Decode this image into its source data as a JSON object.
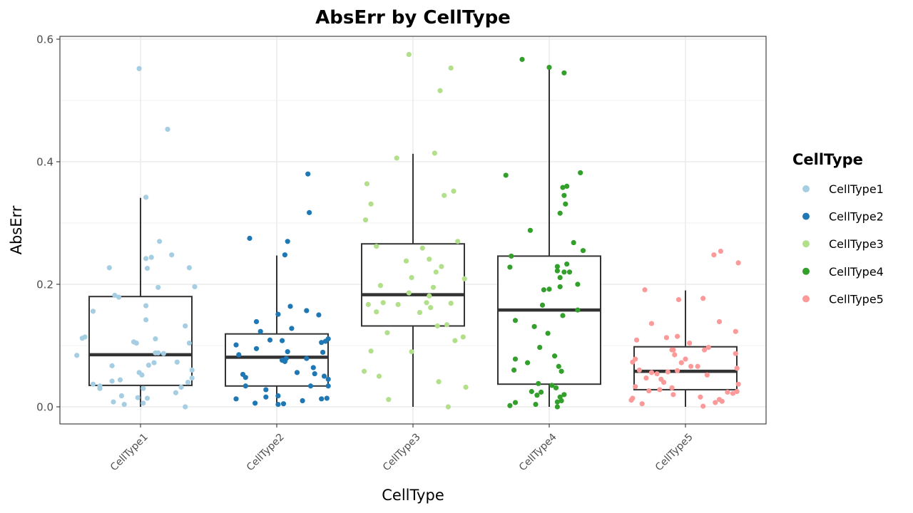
{
  "chart_data": {
    "type": "box+jitter",
    "title": "AbsErr by CellType",
    "xlabel": "CellType",
    "ylabel": "AbsErr",
    "ylim": [
      -0.03,
      0.62
    ],
    "yticks": [
      0.0,
      0.2,
      0.4,
      0.6
    ],
    "ytick_labels": [
      "0.0",
      "0.2",
      "0.4",
      "0.6"
    ],
    "grid": true,
    "legend": {
      "title": "CellType",
      "position": "right"
    },
    "categories": [
      "CellType1",
      "CellType2",
      "CellType3",
      "CellType4",
      "CellType5"
    ],
    "colors": [
      "#a6cee3",
      "#1f78b4",
      "#b2df8a",
      "#33a02c",
      "#fb9a99"
    ],
    "boxes": [
      {
        "category": "CellType1",
        "whisker_low": 0.0,
        "q1": 0.035,
        "median": 0.085,
        "q3": 0.18,
        "whisker_high": 0.341
      },
      {
        "category": "CellType2",
        "whisker_low": 0.003,
        "q1": 0.034,
        "median": 0.081,
        "q3": 0.119,
        "whisker_high": 0.247
      },
      {
        "category": "CellType3",
        "whisker_low": 0.0,
        "q1": 0.132,
        "median": 0.183,
        "q3": 0.266,
        "whisker_high": 0.413
      },
      {
        "category": "CellType4",
        "whisker_low": 0.0,
        "q1": 0.037,
        "median": 0.158,
        "q3": 0.246,
        "whisker_high": 0.556
      },
      {
        "category": "CellType5",
        "whisker_low": 0.0,
        "q1": 0.028,
        "median": 0.058,
        "q3": 0.098,
        "whisker_high": 0.19
      }
    ],
    "points": [
      {
        "category": "CellType1",
        "values": [
          0.552,
          0.453,
          0.342,
          0.27,
          0.248,
          0.244,
          0.242,
          0.227,
          0.227,
          0.226,
          0.196,
          0.195,
          0.182,
          0.179,
          0.165,
          0.156,
          0.142,
          0.132,
          0.114,
          0.112,
          0.111,
          0.106,
          0.104,
          0.104,
          0.088,
          0.088,
          0.087,
          0.084,
          0.073,
          0.072,
          0.068,
          0.067,
          0.06,
          0.056,
          0.052,
          0.047,
          0.044,
          0.042,
          0.04,
          0.037,
          0.034,
          0.032,
          0.03,
          0.03,
          0.023,
          0.018,
          0.015,
          0.014,
          0.008,
          0.006,
          0.004,
          0.0
        ],
        "jitter": [
          -0.01,
          0.2,
          0.04,
          0.14,
          0.23,
          0.08,
          0.04,
          -0.23,
          0.36,
          0.05,
          0.4,
          0.13,
          -0.19,
          -0.16,
          0.04,
          -0.35,
          0.04,
          0.33,
          -0.41,
          -0.43,
          0.11,
          -0.05,
          -0.03,
          0.36,
          0.11,
          0.13,
          0.17,
          -0.47,
          0.27,
          0.1,
          0.06,
          -0.21,
          0.38,
          -0.01,
          0.01,
          0.38,
          -0.15,
          -0.21,
          0.35,
          -0.35,
          -0.3,
          0.3,
          -0.3,
          0.02,
          0.26,
          -0.14,
          -0.02,
          0.05,
          -0.2,
          0.02,
          -0.12,
          0.33
        ]
      },
      {
        "category": "CellType2",
        "values": [
          0.38,
          0.317,
          0.275,
          0.27,
          0.248,
          0.164,
          0.157,
          0.151,
          0.15,
          0.139,
          0.128,
          0.123,
          0.111,
          0.109,
          0.108,
          0.107,
          0.105,
          0.101,
          0.095,
          0.09,
          0.089,
          0.085,
          0.079,
          0.079,
          0.076,
          0.074,
          0.064,
          0.056,
          0.054,
          0.053,
          0.05,
          0.048,
          0.045,
          0.034,
          0.034,
          0.034,
          0.028,
          0.018,
          0.016,
          0.014,
          0.013,
          0.013,
          0.01,
          0.006,
          0.005,
          0.004
        ],
        "jitter": [
          0.23,
          0.24,
          -0.2,
          0.08,
          0.06,
          0.1,
          0.22,
          0.01,
          0.31,
          -0.15,
          0.11,
          -0.12,
          0.38,
          -0.05,
          0.04,
          0.36,
          0.33,
          -0.3,
          -0.15,
          0.08,
          0.34,
          -0.28,
          0.22,
          0.07,
          0.04,
          0.06,
          0.27,
          0.15,
          0.28,
          -0.25,
          0.35,
          -0.23,
          0.38,
          0.25,
          -0.23,
          0.38,
          -0.08,
          0.01,
          -0.08,
          0.37,
          0.33,
          -0.3,
          0.19,
          -0.16,
          0.05,
          0.01
        ]
      },
      {
        "category": "CellType3",
        "values": [
          0.575,
          0.553,
          0.516,
          0.414,
          0.406,
          0.364,
          0.352,
          0.345,
          0.331,
          0.305,
          0.27,
          0.262,
          0.259,
          0.241,
          0.238,
          0.229,
          0.22,
          0.211,
          0.209,
          0.198,
          0.195,
          0.186,
          0.181,
          0.17,
          0.17,
          0.169,
          0.167,
          0.167,
          0.162,
          0.155,
          0.154,
          0.134,
          0.132,
          0.121,
          0.114,
          0.108,
          0.091,
          0.09,
          0.058,
          0.05,
          0.041,
          0.032,
          0.012,
          0.0
        ],
        "jitter": [
          -0.03,
          0.28,
          0.2,
          0.16,
          -0.12,
          -0.34,
          0.3,
          0.23,
          -0.31,
          -0.35,
          0.33,
          -0.27,
          0.07,
          0.12,
          -0.05,
          0.21,
          0.17,
          -0.01,
          0.38,
          -0.24,
          0.15,
          -0.03,
          0.12,
          0.1,
          -0.22,
          0.28,
          -0.33,
          -0.11,
          0.13,
          -0.27,
          0.05,
          0.25,
          0.18,
          -0.19,
          0.37,
          0.31,
          -0.31,
          -0.01,
          -0.36,
          -0.25,
          0.19,
          0.39,
          -0.18,
          0.26
        ]
      },
      {
        "category": "CellType4",
        "values": [
          0.567,
          0.554,
          0.545,
          0.382,
          0.378,
          0.36,
          0.358,
          0.345,
          0.331,
          0.316,
          0.288,
          0.268,
          0.255,
          0.246,
          0.233,
          0.229,
          0.228,
          0.222,
          0.22,
          0.22,
          0.211,
          0.2,
          0.196,
          0.192,
          0.191,
          0.166,
          0.158,
          0.149,
          0.141,
          0.131,
          0.12,
          0.097,
          0.083,
          0.078,
          0.072,
          0.066,
          0.06,
          0.058,
          0.038,
          0.035,
          0.031,
          0.025,
          0.024,
          0.02,
          0.019,
          0.016,
          0.01,
          0.008,
          0.007,
          0.004,
          0.002,
          0.0
        ],
        "jitter": [
          -0.2,
          0.0,
          0.11,
          0.23,
          -0.32,
          0.13,
          0.1,
          0.11,
          0.12,
          0.08,
          -0.14,
          0.18,
          0.25,
          -0.28,
          0.13,
          0.06,
          -0.29,
          0.06,
          0.15,
          0.11,
          0.08,
          0.21,
          0.08,
          0.0,
          -0.04,
          -0.05,
          0.21,
          0.1,
          -0.25,
          -0.11,
          -0.01,
          -0.07,
          0.04,
          -0.25,
          -0.16,
          0.07,
          -0.26,
          0.09,
          -0.08,
          0.02,
          0.05,
          -0.13,
          -0.06,
          0.11,
          -0.09,
          0.08,
          0.09,
          0.06,
          -0.25,
          -0.1,
          -0.29,
          0.06
        ]
      },
      {
        "category": "CellType5",
        "values": [
          0.254,
          0.248,
          0.235,
          0.191,
          0.177,
          0.175,
          0.139,
          0.136,
          0.123,
          0.115,
          0.113,
          0.109,
          0.104,
          0.097,
          0.093,
          0.093,
          0.093,
          0.087,
          0.085,
          0.078,
          0.078,
          0.073,
          0.072,
          0.066,
          0.066,
          0.063,
          0.06,
          0.059,
          0.057,
          0.056,
          0.054,
          0.052,
          0.047,
          0.045,
          0.04,
          0.037,
          0.033,
          0.031,
          0.028,
          0.026,
          0.025,
          0.024,
          0.022,
          0.02,
          0.016,
          0.014,
          0.012,
          0.011,
          0.009,
          0.007,
          0.005,
          0.001
        ],
        "jitter": [
          0.26,
          0.21,
          0.39,
          -0.3,
          0.13,
          -0.05,
          0.25,
          -0.25,
          0.37,
          -0.06,
          -0.14,
          -0.36,
          0.03,
          0.17,
          0.14,
          -0.1,
          -0.09,
          0.37,
          -0.08,
          -0.37,
          0.0,
          -0.39,
          -0.03,
          0.09,
          0.04,
          0.38,
          -0.34,
          -0.06,
          -0.13,
          -0.25,
          -0.21,
          0.16,
          -0.29,
          -0.18,
          -0.16,
          0.39,
          -0.37,
          -0.1,
          -0.19,
          -0.27,
          0.38,
          0.31,
          0.35,
          -0.09,
          0.11,
          -0.39,
          0.25,
          -0.4,
          0.27,
          0.22,
          -0.32,
          0.13
        ]
      }
    ]
  }
}
